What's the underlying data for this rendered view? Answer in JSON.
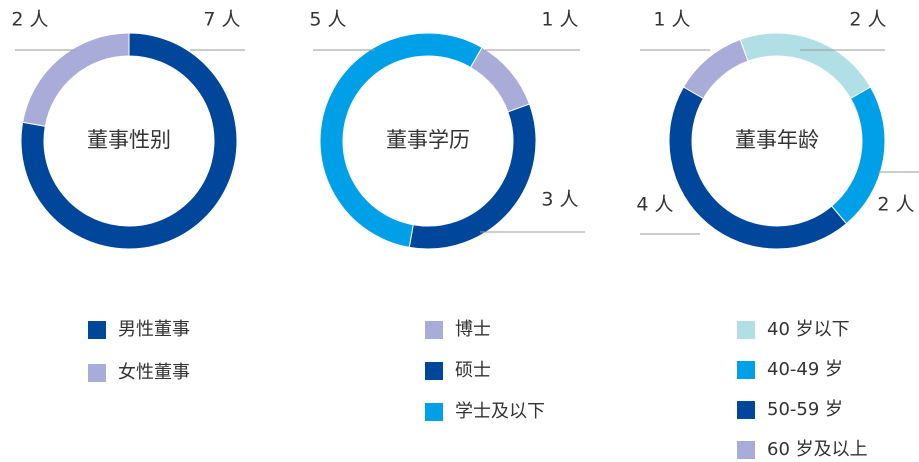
{
  "chart_data": [
    {
      "type": "pie",
      "title": "董事性别",
      "categories": [
        "男性董事",
        "女性董事"
      ],
      "values": [
        7,
        2
      ],
      "value_labels": [
        "7 人",
        "2 人"
      ],
      "colors": [
        "#00469b",
        "#a9acd9"
      ]
    },
    {
      "type": "pie",
      "title": "董事学历",
      "categories": [
        "博士",
        "硕士",
        "学士及以下"
      ],
      "values": [
        1,
        3,
        5
      ],
      "value_labels": [
        "1 人",
        "3 人",
        "5 人"
      ],
      "colors": [
        "#a9acd9",
        "#00469b",
        "#00a0e9"
      ]
    },
    {
      "type": "pie",
      "title": "董事年龄",
      "categories": [
        "40 岁以下",
        "40-49 岁",
        "50-59 岁",
        "60 岁及以上"
      ],
      "values": [
        2,
        2,
        4,
        1
      ],
      "value_labels": [
        "2 人",
        "2 人",
        "4 人",
        "1 人"
      ],
      "colors": [
        "#b0dfe5",
        "#00a0e9",
        "#00469b",
        "#a9acd9"
      ]
    }
  ]
}
